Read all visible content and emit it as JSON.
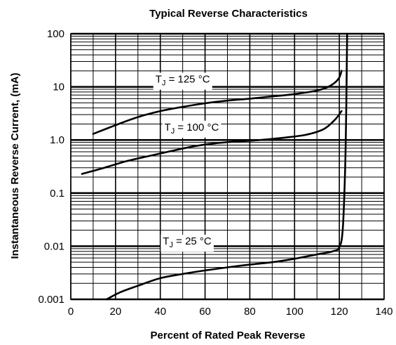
{
  "chart_data": {
    "type": "line",
    "title": "Typical Reverse Characteristics",
    "xlabel": "Percent of Rated Peak Reverse",
    "ylabel": "Instantaneous Reverse Current, (mA)",
    "xlim": [
      0,
      140
    ],
    "ylim": [
      0.001,
      100
    ],
    "yscale": "log",
    "grid": true,
    "x_ticks": [
      {
        "value": 0,
        "label": "0"
      },
      {
        "value": 20,
        "label": "20"
      },
      {
        "value": 40,
        "label": "40"
      },
      {
        "value": 60,
        "label": "60"
      },
      {
        "value": 80,
        "label": "80"
      },
      {
        "value": 100,
        "label": "100"
      },
      {
        "value": 120,
        "label": "120"
      },
      {
        "value": 140,
        "label": "140"
      }
    ],
    "y_ticks": [
      {
        "value": 100,
        "label": "100"
      },
      {
        "value": 10,
        "label": "10"
      },
      {
        "value": 1,
        "label": "1.0"
      },
      {
        "value": 0.1,
        "label": "0.1"
      },
      {
        "value": 0.01,
        "label": "0.01"
      },
      {
        "value": 0.001,
        "label": "0.001"
      }
    ],
    "series": [
      {
        "label_main": "T",
        "label_sub": "J",
        "label_rest": " = 125 °C",
        "label_at": [
          50,
          14
        ],
        "points": [
          [
            10,
            1.3
          ],
          [
            20,
            1.9
          ],
          [
            30,
            2.7
          ],
          [
            40,
            3.5
          ],
          [
            50,
            4.2
          ],
          [
            60,
            4.9
          ],
          [
            70,
            5.5
          ],
          [
            80,
            6.0
          ],
          [
            90,
            6.6
          ],
          [
            100,
            7.3
          ],
          [
            110,
            8.5
          ],
          [
            115,
            10
          ],
          [
            118,
            12
          ],
          [
            120,
            15
          ],
          [
            121,
            20
          ]
        ]
      },
      {
        "label_main": "T",
        "label_sub": "J",
        "label_rest": " = 100 °C",
        "label_at": [
          54,
          1.75
        ],
        "points": [
          [
            5,
            0.23
          ],
          [
            15,
            0.3
          ],
          [
            25,
            0.4
          ],
          [
            35,
            0.5
          ],
          [
            45,
            0.62
          ],
          [
            55,
            0.76
          ],
          [
            65,
            0.87
          ],
          [
            75,
            0.94
          ],
          [
            85,
            1.0
          ],
          [
            95,
            1.1
          ],
          [
            105,
            1.25
          ],
          [
            113,
            1.6
          ],
          [
            118,
            2.4
          ],
          [
            121,
            3.5
          ]
        ]
      },
      {
        "label_main": "T",
        "label_sub": "J",
        "label_rest": " = 25 °C",
        "label_at": [
          52,
          0.0125
        ],
        "points": [
          [
            16,
            0.001
          ],
          [
            22,
            0.00135
          ],
          [
            30,
            0.0018
          ],
          [
            40,
            0.0025
          ],
          [
            50,
            0.003
          ],
          [
            60,
            0.0035
          ],
          [
            70,
            0.004
          ],
          [
            80,
            0.0045
          ],
          [
            90,
            0.005
          ],
          [
            100,
            0.0058
          ],
          [
            110,
            0.007
          ],
          [
            117,
            0.008
          ],
          [
            120,
            0.0095
          ],
          [
            121.5,
            0.02
          ],
          [
            122.5,
            0.2
          ],
          [
            123,
            2
          ],
          [
            123.3,
            20
          ],
          [
            123.5,
            100
          ]
        ]
      }
    ]
  }
}
